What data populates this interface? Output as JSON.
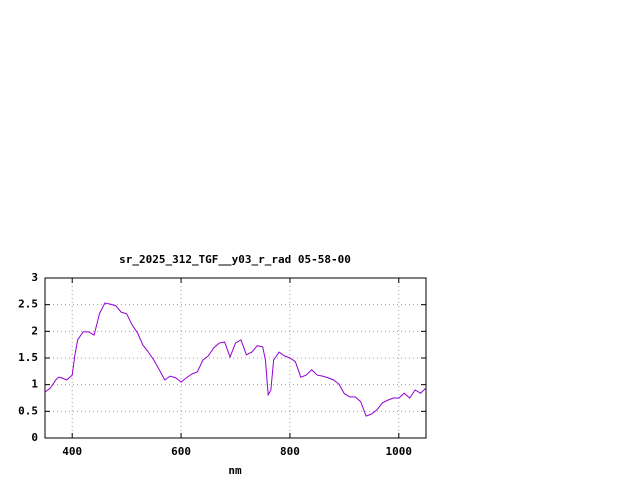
{
  "chart_data": {
    "type": "line",
    "title": "sr_2025_312_TGF__y03_r_rad 05-58-00",
    "x_label": "nm",
    "x": [
      350,
      360,
      370,
      375,
      380,
      390,
      400,
      405,
      410,
      420,
      430,
      440,
      445,
      450,
      460,
      470,
      480,
      490,
      500,
      510,
      520,
      530,
      540,
      550,
      560,
      570,
      580,
      590,
      600,
      610,
      620,
      630,
      640,
      650,
      660,
      670,
      680,
      690,
      700,
      710,
      720,
      730,
      740,
      750,
      755,
      760,
      765,
      770,
      780,
      790,
      800,
      810,
      820,
      830,
      840,
      850,
      860,
      870,
      880,
      890,
      900,
      910,
      920,
      930,
      940,
      950,
      960,
      970,
      980,
      990,
      1000,
      1010,
      1020,
      1030,
      1040,
      1050
    ],
    "series": [
      {
        "color": "#9400d3",
        "values": [
          0.86,
          0.94,
          1.09,
          1.14,
          1.13,
          1.09,
          1.18,
          1.56,
          1.84,
          1.99,
          1.99,
          1.93,
          2.12,
          2.33,
          2.53,
          2.51,
          2.48,
          2.36,
          2.33,
          2.12,
          1.97,
          1.74,
          1.61,
          1.46,
          1.28,
          1.09,
          1.16,
          1.13,
          1.05,
          1.13,
          1.2,
          1.24,
          1.46,
          1.54,
          1.69,
          1.78,
          1.8,
          1.52,
          1.78,
          1.84,
          1.56,
          1.61,
          1.73,
          1.71,
          1.46,
          0.81,
          0.9,
          1.46,
          1.61,
          1.54,
          1.5,
          1.43,
          1.14,
          1.18,
          1.28,
          1.18,
          1.16,
          1.13,
          1.09,
          1.01,
          0.83,
          0.77,
          0.77,
          0.68,
          0.41,
          0.45,
          0.53,
          0.66,
          0.71,
          0.75,
          0.75,
          0.84,
          0.75,
          0.9,
          0.84,
          0.94
        ]
      }
    ],
    "xlim": [
      350,
      1050
    ],
    "xticks": [
      400,
      600,
      800,
      1000
    ],
    "ylim": [
      0,
      3
    ],
    "yticks": [
      0,
      0.5,
      1,
      1.5,
      2,
      2.5,
      3
    ],
    "grid": true
  }
}
